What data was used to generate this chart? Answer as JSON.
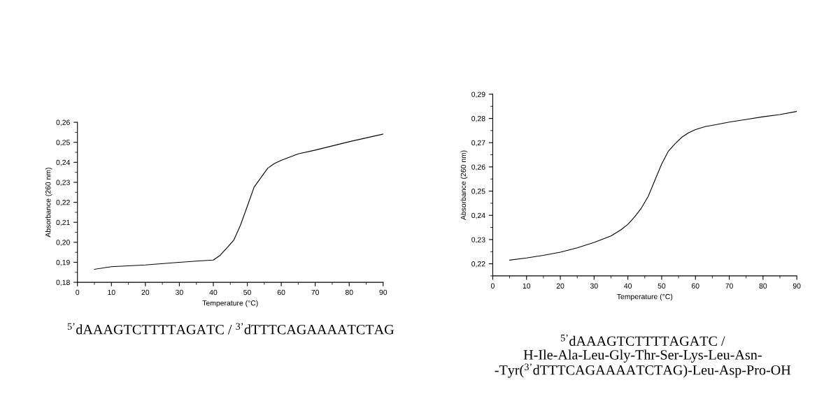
{
  "chart_data": [
    {
      "type": "line",
      "xlabel": "Temperature (°C)",
      "ylabel": "Absorbance (260 nm)",
      "annotations": [
        "$^{5’}$dAAAGTCTTTTAGATC / $^{3’}$dTTTCAGAAAATCTAG"
      ],
      "xlim": [
        0,
        90
      ],
      "xticks": [
        0,
        10,
        20,
        30,
        40,
        50,
        60,
        70,
        80,
        90
      ],
      "ylim": [
        0.18,
        0.26
      ],
      "yticks": [
        {
          "value": 0.18,
          "label": "0,18"
        },
        {
          "value": 0.19,
          "label": "0,19"
        },
        {
          "value": 0.2,
          "label": "0,20"
        },
        {
          "value": 0.21,
          "label": "0,21"
        },
        {
          "value": 0.22,
          "label": "0,22"
        },
        {
          "value": 0.23,
          "label": "0,23"
        },
        {
          "value": 0.24,
          "label": "0,24"
        },
        {
          "value": 0.25,
          "label": "0,25"
        },
        {
          "value": 0.26,
          "label": "0,26"
        }
      ],
      "grid": false,
      "legend": false,
      "series": [
        {
          "color": "#000000",
          "x": [
            5,
            10,
            20,
            30,
            35,
            40,
            42,
            44,
            46,
            48,
            50,
            52,
            54,
            56,
            58,
            60,
            62,
            65,
            70,
            75,
            80,
            85,
            90
          ],
          "values": [
            0.1865,
            0.1878,
            0.1887,
            0.19,
            0.1906,
            0.1911,
            0.1935,
            0.1972,
            0.201,
            0.2086,
            0.218,
            0.2276,
            0.2323,
            0.237,
            0.2394,
            0.241,
            0.2423,
            0.2442,
            0.2461,
            0.2482,
            0.2503,
            0.2522,
            0.2541
          ]
        }
      ]
    },
    {
      "type": "line",
      "xlabel": "Temperature (°C)",
      "ylabel": "Absorbance (260 nm)",
      "annotations": [
        "$^{5’}$dAAAGTCTTTTAGATC /\nH-Ile-Ala-Leu-Gly-Thr-Ser-Lys-Leu-Asn-\n-Tyr($^{3’}$dTTTCAGAAAATCTAG)-Leu-Asp-Pro-OH"
      ],
      "xlim": [
        0,
        90
      ],
      "xticks": [
        0,
        10,
        20,
        30,
        40,
        50,
        60,
        70,
        80,
        90
      ],
      "ylim": [
        0.215,
        0.29
      ],
      "yticks": [
        {
          "value": 0.22,
          "label": "0,22"
        },
        {
          "value": 0.23,
          "label": "0,23"
        },
        {
          "value": 0.24,
          "label": "0,24"
        },
        {
          "value": 0.25,
          "label": "0,25"
        },
        {
          "value": 0.26,
          "label": "0,26"
        },
        {
          "value": 0.27,
          "label": "0,27"
        },
        {
          "value": 0.28,
          "label": "0,28"
        },
        {
          "value": 0.29,
          "label": "0,29"
        }
      ],
      "grid": false,
      "legend": false,
      "series": [
        {
          "color": "#000000",
          "x": [
            5,
            10,
            15,
            20,
            25,
            30,
            35,
            38,
            40,
            42,
            44,
            46,
            48,
            50,
            52,
            54,
            56,
            58,
            60,
            63,
            66,
            70,
            75,
            80,
            85,
            90
          ],
          "values": [
            0.2215,
            0.2224,
            0.2235,
            0.2248,
            0.2266,
            0.2288,
            0.2315,
            0.2341,
            0.2363,
            0.2394,
            0.243,
            0.2478,
            0.2545,
            0.2612,
            0.2665,
            0.2696,
            0.2723,
            0.2741,
            0.2754,
            0.2767,
            0.2774,
            0.2785,
            0.2796,
            0.2807,
            0.2816,
            0.2829
          ]
        }
      ]
    }
  ]
}
